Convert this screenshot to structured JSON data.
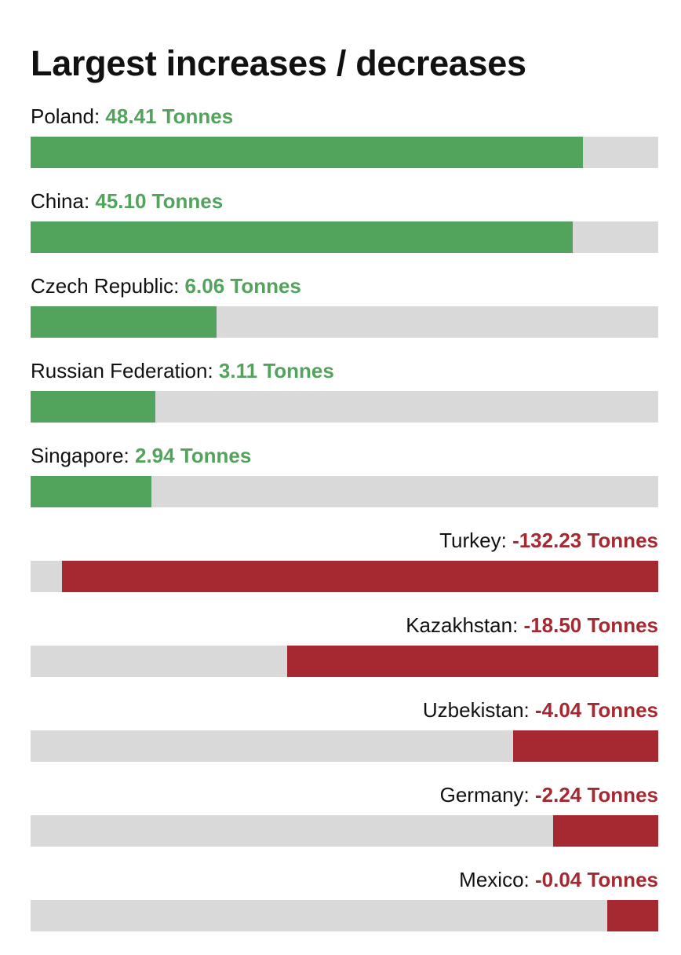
{
  "chart_data": {
    "type": "bar",
    "title": "Largest increases / decreases",
    "unit": "Tonnes",
    "colors": {
      "positive": "#52a35b",
      "negative": "#a62830",
      "track": "#d9d9d9"
    },
    "bars": [
      {
        "name": "Poland",
        "value": 48.41,
        "display": "48.41 Tonnes"
      },
      {
        "name": "China",
        "value": 45.1,
        "display": "45.10 Tonnes"
      },
      {
        "name": "Czech Republic",
        "value": 6.06,
        "display": "6.06 Tonnes"
      },
      {
        "name": "Russian Federation",
        "value": 3.11,
        "display": "3.11 Tonnes"
      },
      {
        "name": "Singapore",
        "value": 2.94,
        "display": "2.94 Tonnes"
      },
      {
        "name": "Turkey",
        "value": -132.23,
        "display": "-132.23 Tonnes"
      },
      {
        "name": "Kazakhstan",
        "value": -18.5,
        "display": "-18.50 Tonnes"
      },
      {
        "name": "Uzbekistan",
        "value": -4.04,
        "display": "-4.04 Tonnes"
      },
      {
        "name": "Germany",
        "value": -2.24,
        "display": "-2.24 Tonnes"
      },
      {
        "name": "Mexico",
        "value": -0.04,
        "display": "-0.04 Tonnes"
      }
    ]
  }
}
